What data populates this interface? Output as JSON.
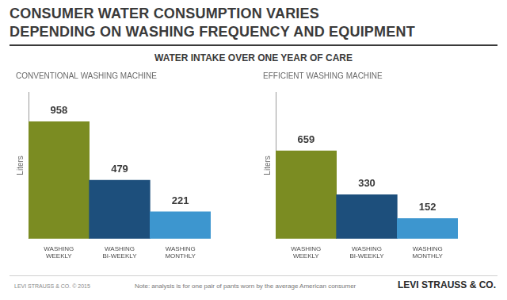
{
  "title": [
    "CONSUMER WATER CONSUMPTION VARIES",
    "DEPENDING ON WASHING FREQUENCY AND EQUIPMENT"
  ],
  "subtitle": "WATER INTAKE OVER ONE YEAR OF CARE",
  "chart_data": [
    {
      "type": "bar",
      "title": "CONVENTIONAL WASHING MACHINE",
      "y_label": "Liters",
      "categories": [
        "WASHING WEEKLY",
        "WASHING BI-WEEKLY",
        "WASHING MONTHLY"
      ],
      "values": [
        958,
        479,
        221
      ],
      "colors": [
        "#7b8c22",
        "#1d4f7c",
        "#3d96cf"
      ],
      "ylim": [
        0,
        1200
      ],
      "grid": false,
      "data_labels": true,
      "tick_labels": "x"
    },
    {
      "type": "bar",
      "title": "EFFICIENT WASHING MACHINE",
      "y_label": "Liters",
      "categories": [
        "WASHING WEEKLY",
        "WASHING BI-WEEKLY",
        "WASHING MONTHLY"
      ],
      "values": [
        659,
        330,
        152
      ],
      "colors": [
        "#7b8c22",
        "#1d4f7c",
        "#3d96cf"
      ],
      "ylim": [
        0,
        1100
      ],
      "grid": false,
      "data_labels": true,
      "tick_labels": "x"
    }
  ],
  "footer": {
    "left": "LEVI STRAUSS & CO. © 2015",
    "note": "Note: analysis is for one pair of pants worn by the average American consumer",
    "right": "LEVI STRAUSS & CO."
  }
}
